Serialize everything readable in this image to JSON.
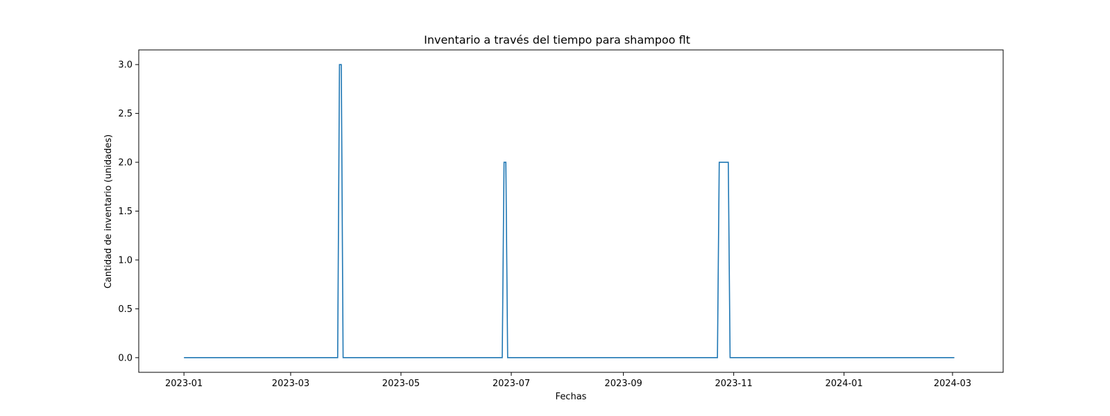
{
  "chart_data": {
    "type": "line",
    "title": "Inventario a través del tiempo para shampoo flt",
    "xlabel": "Fechas",
    "ylabel": "Cantidad de inventario (unidades)",
    "x_type": "date",
    "xlim": [
      "2022-12-07",
      "2024-03-29"
    ],
    "ylim": [
      -0.15,
      3.15
    ],
    "x_ticks": [
      "2023-01",
      "2023-03",
      "2023-05",
      "2023-07",
      "2023-09",
      "2023-11",
      "2024-01",
      "2024-03"
    ],
    "y_ticks": [
      "0.0",
      "0.5",
      "1.0",
      "1.5",
      "2.0",
      "2.5",
      "3.0"
    ],
    "grid": false,
    "legend": "none",
    "series": [
      {
        "color": "#1f77b4",
        "points": [
          {
            "x": "2023-01-01",
            "y": 0
          },
          {
            "x": "2023-03-27",
            "y": 0
          },
          {
            "x": "2023-03-28",
            "y": 3
          },
          {
            "x": "2023-03-29",
            "y": 3
          },
          {
            "x": "2023-03-30",
            "y": 0
          },
          {
            "x": "2023-06-26",
            "y": 0
          },
          {
            "x": "2023-06-27",
            "y": 2
          },
          {
            "x": "2023-06-28",
            "y": 2
          },
          {
            "x": "2023-06-29",
            "y": 0
          },
          {
            "x": "2023-10-23",
            "y": 0
          },
          {
            "x": "2023-10-24",
            "y": 2
          },
          {
            "x": "2023-10-29",
            "y": 2
          },
          {
            "x": "2023-10-30",
            "y": 0
          },
          {
            "x": "2024-03-02",
            "y": 0
          }
        ]
      }
    ]
  }
}
